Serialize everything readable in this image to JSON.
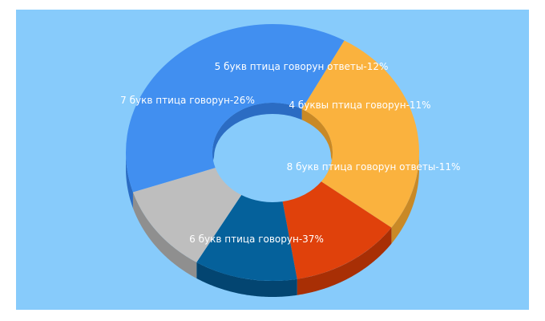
{
  "chart_data": {
    "type": "pie",
    "variant": "3d-donut",
    "background": "#87cbfb",
    "slices": [
      {
        "label": "6 букв птица говорун",
        "value": 37,
        "color": "#418ff0",
        "side_color": "#2b6cc3",
        "text": "6 букв птица говорун-37%"
      },
      {
        "label": "7 букв птица говорун",
        "value": 26,
        "color": "#fab23e",
        "side_color": "#c98926",
        "text": "7 букв птица говорун-26%"
      },
      {
        "label": "5 букв птица говорун ответы",
        "value": 12,
        "color": "#e0410b",
        "side_color": "#a82f05",
        "text": "5 букв птица говорун ответы-12%"
      },
      {
        "label": "4 буквы птица говорун",
        "value": 11,
        "color": "#05619b",
        "side_color": "#034571",
        "text": "4 буквы птица говорун-11%"
      },
      {
        "label": "8 букв птица говорун ответы",
        "value": 11,
        "color": "#bebebe",
        "side_color": "#8f8f8f",
        "text": "8 букв птица говорун ответы-11%"
      }
    ]
  }
}
